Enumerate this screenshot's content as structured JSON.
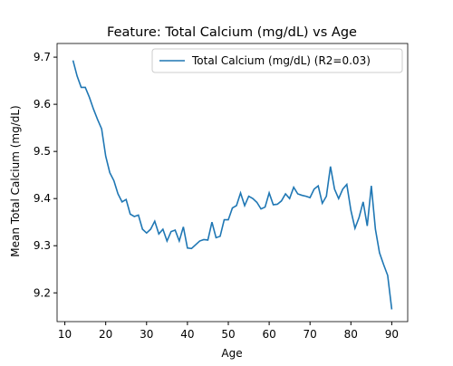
{
  "chart_data": {
    "type": "line",
    "title": "Feature: Total Calcium (mg/dL) vs Age",
    "xlabel": "Age",
    "ylabel": "Mean Total Calcium (mg/dL)",
    "x": [
      12,
      13,
      14,
      15,
      16,
      17,
      18,
      19,
      20,
      21,
      22,
      23,
      24,
      25,
      26,
      27,
      28,
      29,
      30,
      31,
      32,
      33,
      34,
      35,
      36,
      37,
      38,
      39,
      40,
      41,
      42,
      43,
      44,
      45,
      46,
      47,
      48,
      49,
      50,
      51,
      52,
      53,
      54,
      55,
      56,
      57,
      58,
      59,
      60,
      61,
      62,
      63,
      64,
      65,
      66,
      67,
      68,
      69,
      70,
      71,
      72,
      73,
      74,
      75,
      76,
      77,
      78,
      79,
      80,
      81,
      82,
      83,
      84,
      85,
      86,
      87,
      88,
      89,
      90
    ],
    "series": [
      {
        "name": "Total Calcium (mg/dL) (R2=0.03)",
        "color": "#1f77b4",
        "values": [
          9.693,
          9.66,
          9.636,
          9.636,
          9.615,
          9.59,
          9.568,
          9.548,
          9.49,
          9.455,
          9.438,
          9.41,
          9.393,
          9.398,
          9.367,
          9.362,
          9.365,
          9.335,
          9.327,
          9.335,
          9.352,
          9.325,
          9.335,
          9.31,
          9.33,
          9.333,
          9.31,
          9.34,
          9.295,
          9.294,
          9.302,
          9.31,
          9.313,
          9.312,
          9.35,
          9.317,
          9.32,
          9.355,
          9.355,
          9.38,
          9.385,
          9.412,
          9.385,
          9.405,
          9.4,
          9.392,
          9.378,
          9.382,
          9.412,
          9.387,
          9.388,
          9.395,
          9.41,
          9.4,
          9.424,
          9.41,
          9.407,
          9.405,
          9.402,
          9.42,
          9.427,
          9.39,
          9.405,
          9.468,
          9.42,
          9.4,
          9.42,
          9.43,
          9.375,
          9.337,
          9.36,
          9.393,
          9.342,
          9.427,
          9.335,
          9.285,
          9.26,
          9.237,
          9.165
        ]
      }
    ],
    "xlim": [
      8.1,
      93.9
    ],
    "xticks": [
      10,
      20,
      30,
      40,
      50,
      60,
      70,
      80,
      90
    ],
    "ylim": [
      9.139,
      9.729
    ],
    "yticks": [
      9.2,
      9.3,
      9.4,
      9.5,
      9.6,
      9.7
    ],
    "legend": "upper right",
    "grid": false
  }
}
